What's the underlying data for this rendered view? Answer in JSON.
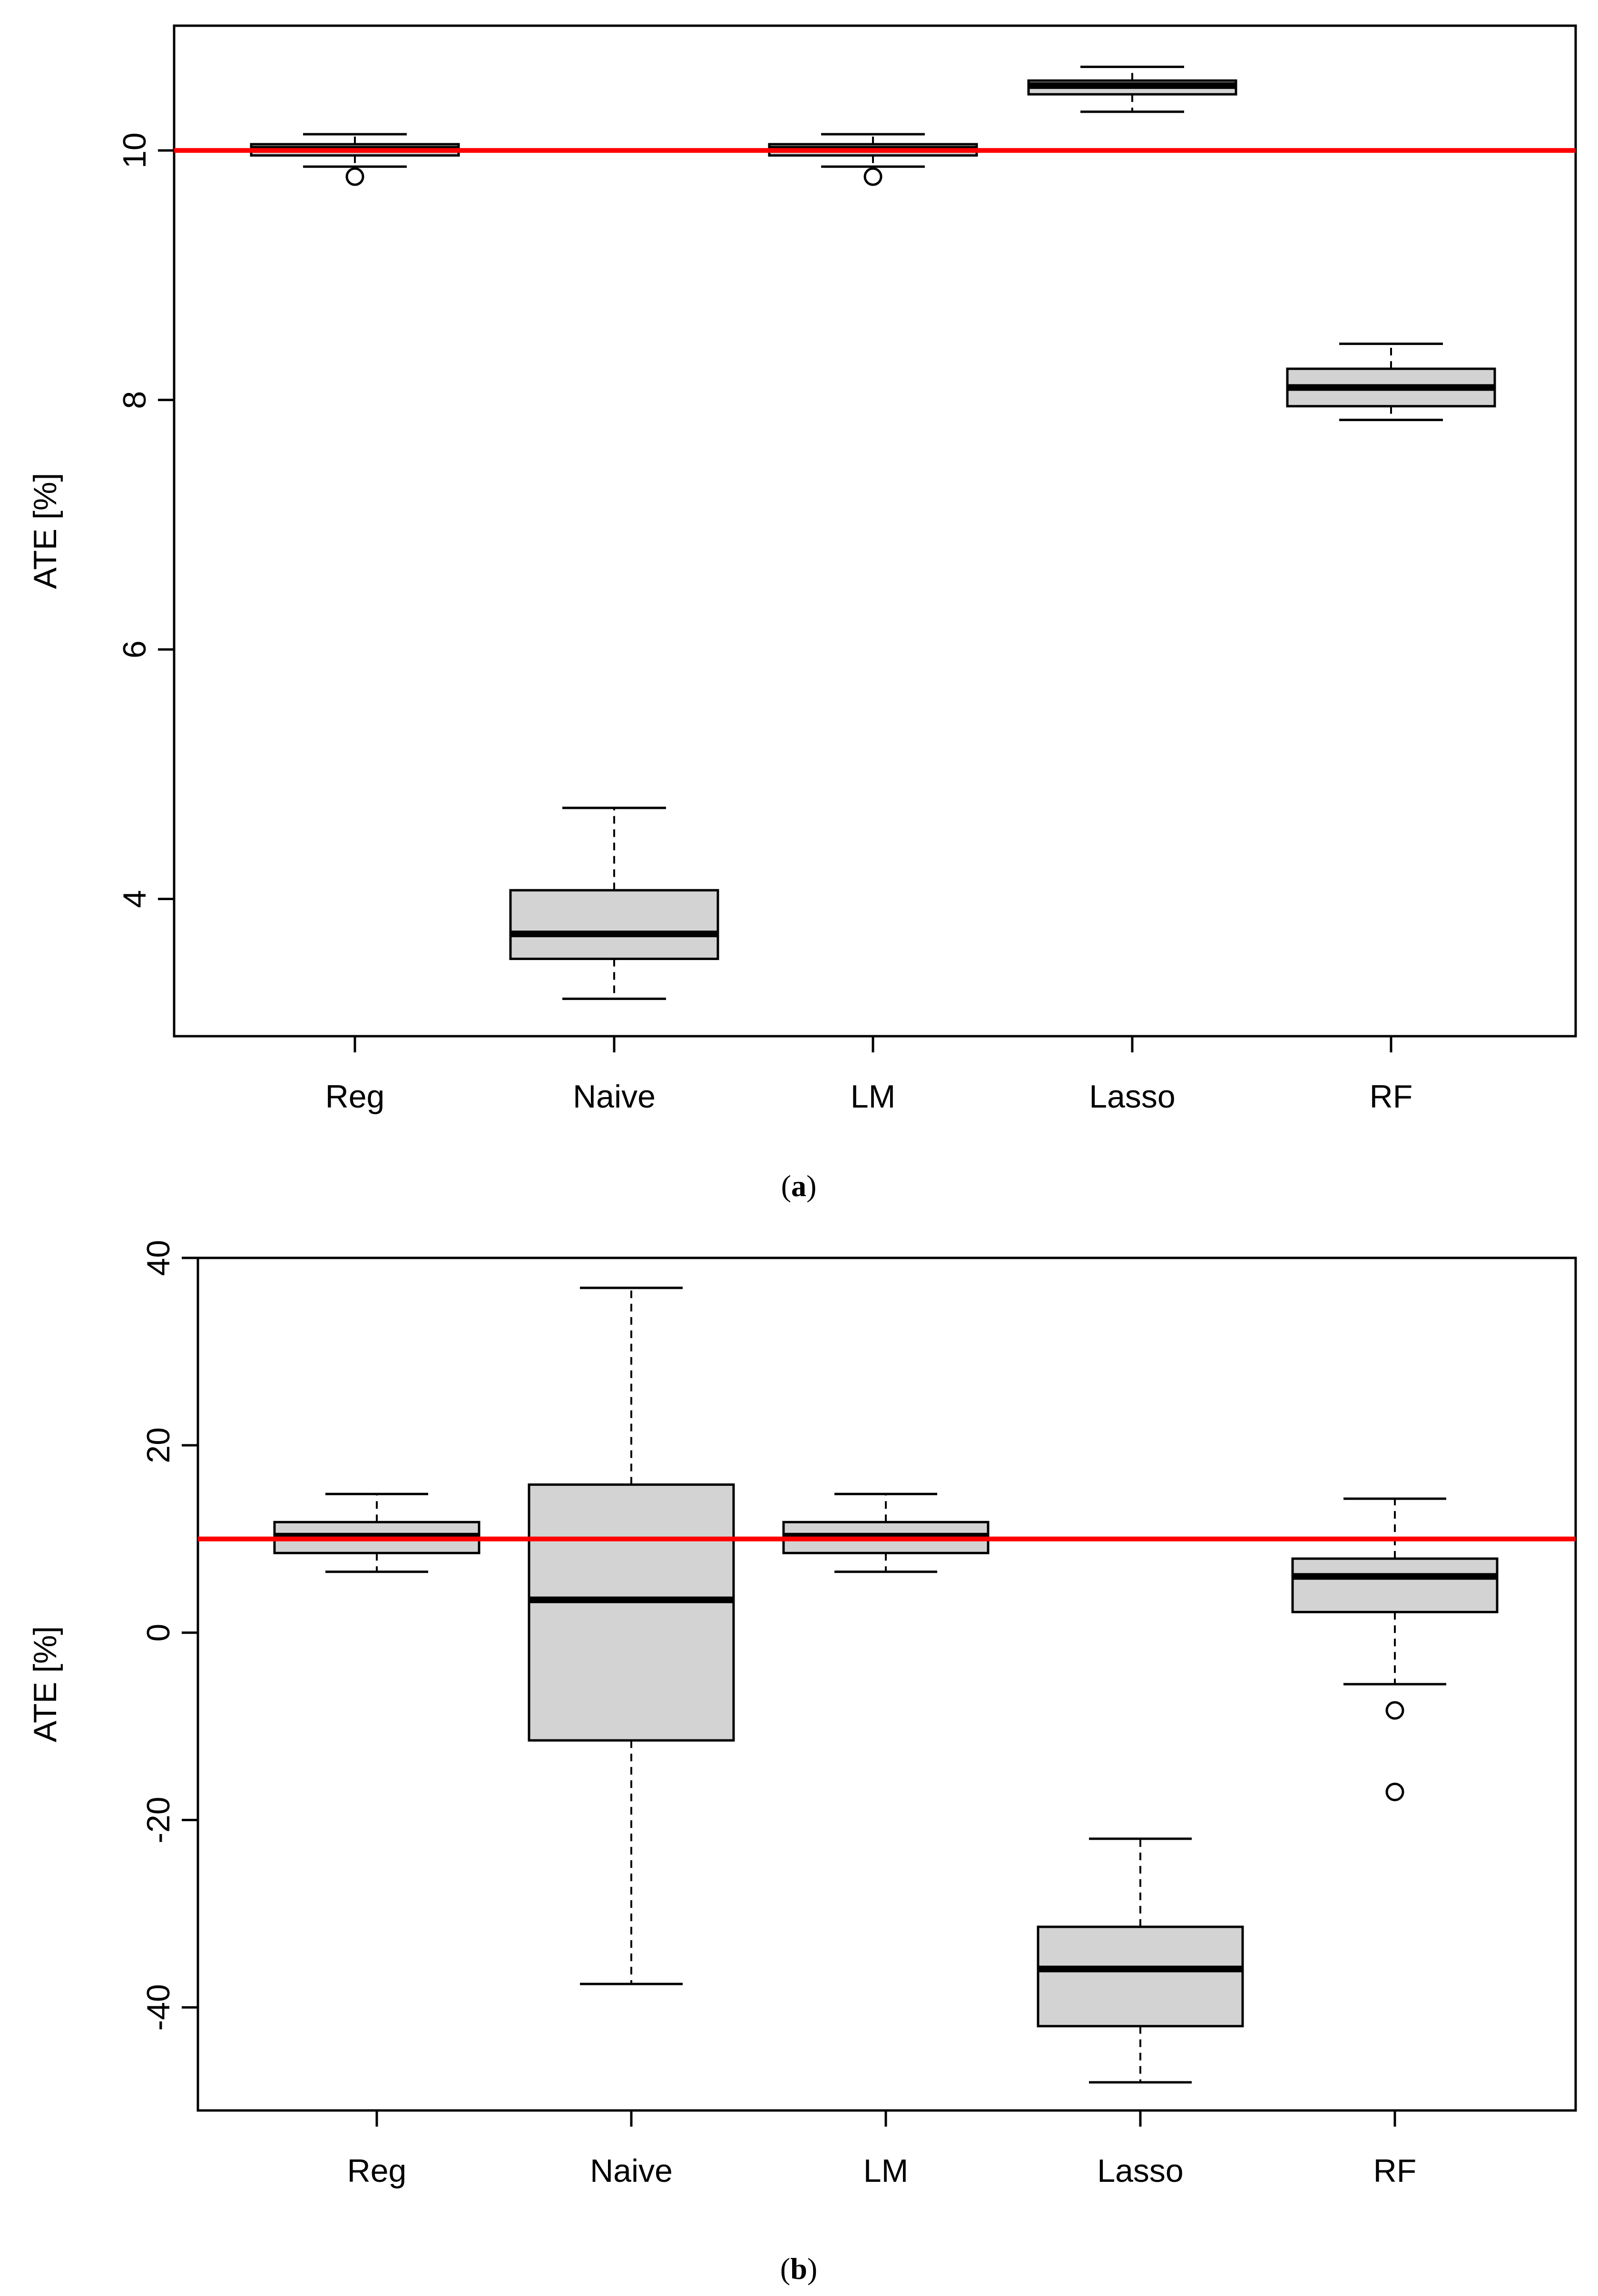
{
  "chart_data": [
    {
      "type": "boxplot",
      "caption_letter": "a",
      "ylabel": "ATE [%]",
      "ylim": [
        2.9,
        11.0
      ],
      "yticks": [
        4,
        6,
        8,
        10
      ],
      "categories": [
        "Reg",
        "Naive",
        "LM",
        "Lasso",
        "RF"
      ],
      "reference_line": 10,
      "reference_color": "#ff0000",
      "box_fill": "#d3d3d3",
      "boxes": [
        {
          "category": "Reg",
          "whisker_low": 9.87,
          "q1": 9.96,
          "median": 10.01,
          "q3": 10.05,
          "whisker_high": 10.13,
          "outliers": [
            9.79
          ]
        },
        {
          "category": "Naive",
          "whisker_low": 3.2,
          "q1": 3.52,
          "median": 3.72,
          "q3": 4.07,
          "whisker_high": 4.73,
          "outliers": []
        },
        {
          "category": "LM",
          "whisker_low": 9.87,
          "q1": 9.96,
          "median": 10.01,
          "q3": 10.05,
          "whisker_high": 10.13,
          "outliers": [
            9.79
          ]
        },
        {
          "category": "Lasso",
          "whisker_low": 10.31,
          "q1": 10.45,
          "median": 10.52,
          "q3": 10.56,
          "whisker_high": 10.67,
          "outliers": []
        },
        {
          "category": "RF",
          "whisker_low": 7.84,
          "q1": 7.95,
          "median": 8.1,
          "q3": 8.25,
          "whisker_high": 8.45,
          "outliers": []
        }
      ]
    },
    {
      "type": "boxplot",
      "caption_letter": "b",
      "ylabel": "ATE [%]",
      "ylim": [
        -51,
        40
      ],
      "yticks": [
        -40,
        -20,
        0,
        20,
        40
      ],
      "categories": [
        "Reg",
        "Naive",
        "LM",
        "Lasso",
        "RF"
      ],
      "reference_line": 10,
      "reference_color": "#ff0000",
      "box_fill": "#d3d3d3",
      "boxes": [
        {
          "category": "Reg",
          "whisker_low": 6.5,
          "q1": 8.5,
          "median": 10.3,
          "q3": 11.8,
          "whisker_high": 14.8,
          "outliers": []
        },
        {
          "category": "Naive",
          "whisker_low": -37.5,
          "q1": -11.5,
          "median": 3.5,
          "q3": 15.8,
          "whisker_high": 36.8,
          "outliers": []
        },
        {
          "category": "LM",
          "whisker_low": 6.5,
          "q1": 8.5,
          "median": 10.3,
          "q3": 11.8,
          "whisker_high": 14.8,
          "outliers": []
        },
        {
          "category": "Lasso",
          "whisker_low": -48,
          "q1": -42,
          "median": -35.9,
          "q3": -31.4,
          "whisker_high": -22,
          "outliers": []
        },
        {
          "category": "RF",
          "whisker_low": -5.5,
          "q1": 2.2,
          "median": 6.0,
          "q3": 7.9,
          "whisker_high": 14.3,
          "outliers": [
            -8.3,
            -17
          ]
        }
      ]
    }
  ]
}
